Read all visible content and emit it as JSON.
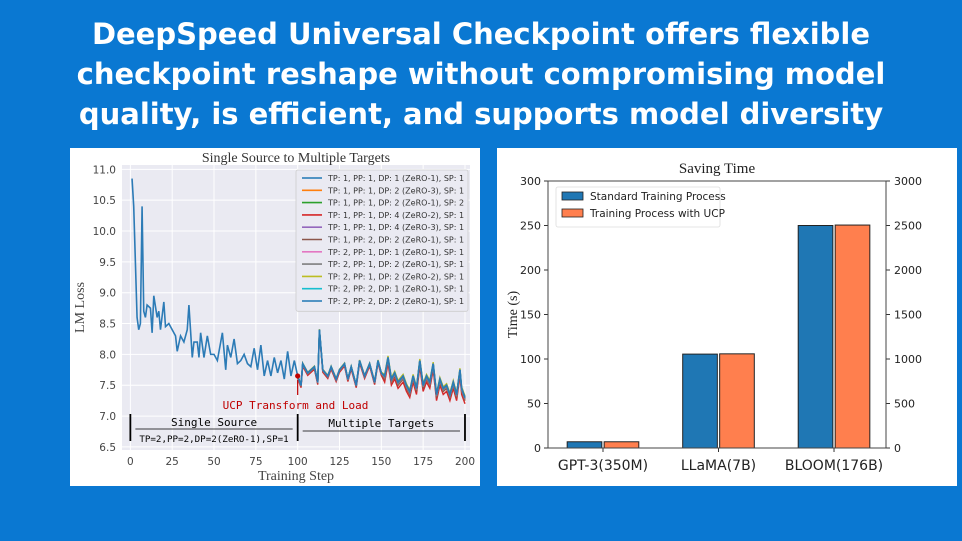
{
  "slide": {
    "title_lines": [
      "DeepSpeed Universal Checkpoint offers flexible",
      "checkpoint reshape without compromising model",
      "quality, is efficient, and supports model diversity"
    ],
    "background_color": "#0a78d2"
  },
  "chart_data": [
    {
      "type": "line",
      "title": "Single Source to Multiple Targets",
      "xlabel": "Training Step",
      "ylabel": "LM Loss",
      "xlim": [
        -5,
        203
      ],
      "ylim": [
        6.45,
        11.07
      ],
      "xticks": [
        0,
        25,
        50,
        75,
        100,
        125,
        150,
        175,
        200
      ],
      "yticks": [
        6.5,
        7.0,
        7.5,
        8.0,
        8.5,
        9.0,
        9.5,
        10.0,
        10.5,
        11.0
      ],
      "ytick_labels": [
        "6.5",
        "7.0",
        "7.5",
        "8.0",
        "8.5",
        "9.0",
        "9.5",
        "10.0",
        "10.5",
        "11.0"
      ],
      "grid": true,
      "legend_position": "top-right",
      "source_series": {
        "x": [
          1,
          2,
          4,
          5,
          6,
          7,
          8,
          9,
          10,
          12,
          13,
          14,
          16,
          17,
          18,
          20,
          21,
          23,
          25,
          27,
          28,
          30,
          32,
          34,
          35,
          37,
          38,
          40,
          41,
          42,
          44,
          46,
          48,
          50,
          52,
          55,
          57,
          58,
          60,
          62,
          64,
          66,
          68,
          70,
          72,
          74,
          76,
          78,
          80,
          82,
          84,
          86,
          88,
          90,
          92,
          94,
          96,
          98,
          100,
          102,
          103,
          106,
          110,
          112,
          113,
          115,
          118,
          120,
          123,
          125,
          128,
          130,
          132,
          135,
          137,
          140,
          143,
          146,
          148,
          150,
          152,
          154,
          156,
          158,
          160,
          163,
          165,
          167,
          169,
          171,
          173,
          175,
          177,
          179,
          181,
          183,
          185,
          187,
          189,
          191,
          193,
          195,
          197,
          198,
          200
        ],
        "y": [
          10.85,
          10.4,
          8.6,
          8.4,
          8.5,
          10.4,
          8.7,
          8.6,
          8.8,
          8.75,
          8.35,
          8.95,
          8.6,
          8.7,
          8.4,
          8.85,
          8.45,
          8.5,
          8.4,
          8.3,
          8.05,
          8.3,
          8.2,
          8.4,
          8.8,
          7.95,
          8.2,
          8.2,
          7.95,
          8.35,
          7.95,
          8.3,
          8.0,
          8.0,
          7.9,
          8.35,
          7.75,
          8.15,
          7.95,
          8.25,
          7.85,
          7.9,
          8.0,
          7.85,
          7.8,
          8.1,
          7.75,
          8.15,
          7.65,
          7.9,
          7.65,
          7.95,
          7.7,
          7.9,
          7.6,
          8.05,
          7.65,
          7.9,
          7.65,
          7.5,
          7.85,
          7.7,
          7.8,
          7.55,
          8.4,
          7.75,
          7.65,
          7.8,
          7.6,
          7.75,
          7.85,
          7.6,
          7.8,
          7.5,
          7.9,
          7.65,
          7.85,
          7.55,
          7.9,
          7.7,
          7.65,
          7.95,
          7.6,
          7.7,
          7.55,
          7.65,
          7.5,
          7.4,
          7.65,
          7.45,
          7.9,
          7.5,
          7.65,
          7.55,
          7.85,
          7.35,
          7.6,
          7.45,
          7.5,
          7.35,
          7.55,
          7.35,
          7.75,
          7.45,
          7.3
        ]
      },
      "series": [
        {
          "name": "TP: 1, PP: 1, DP: 1 (ZeRO-1), SP: 1",
          "color": "#1f77b4",
          "offset_after_100": 0.0
        },
        {
          "name": "TP: 1, PP: 1, DP: 2 (ZeRO-3), SP: 1",
          "color": "#ff7f0e",
          "offset_after_100": -0.02
        },
        {
          "name": "TP: 1, PP: 1, DP: 2 (ZeRO-1), SP: 2",
          "color": "#2ca02c",
          "offset_after_100": -0.01
        },
        {
          "name": "TP: 1, PP: 1, DP: 4 (ZeRO-2), SP: 1",
          "color": "#d62728",
          "offset_after_100": -0.04
        },
        {
          "name": "TP: 1, PP: 1, DP: 4 (ZeRO-3), SP: 1",
          "color": "#9467bd",
          "offset_after_100": -0.01
        },
        {
          "name": "TP: 1, PP: 2, DP: 2 (ZeRO-1), SP: 1",
          "color": "#8c564b",
          "offset_after_100": -0.02
        },
        {
          "name": "TP: 2, PP: 1, DP: 1 (ZeRO-1), SP: 1",
          "color": "#e377c2",
          "offset_after_100": -0.01
        },
        {
          "name": "TP: 2, PP: 1, DP: 2 (ZeRO-1), SP: 1",
          "color": "#7f7f7f",
          "offset_after_100": -0.01
        },
        {
          "name": "TP: 2, PP: 1, DP: 2 (ZeRO-2), SP: 1",
          "color": "#bcbd22",
          "offset_after_100": 0.01
        },
        {
          "name": "TP: 2, PP: 2, DP: 1 (ZeRO-1), SP: 1",
          "color": "#17becf",
          "offset_after_100": 0.0
        },
        {
          "name": "TP: 2, PP: 2, DP: 2 (ZeRO-1), SP: 1",
          "color": "#1f77b4",
          "offset_after_100": 0.0
        }
      ],
      "annotations": {
        "transform_label": "UCP Transform and Load",
        "transform_step": 100,
        "transform_loss": 7.65,
        "single_source_label": "Single Source",
        "single_source_config": "TP=2,PP=2,DP=2(ZeRO-1),SP=1",
        "multiple_targets_label": "Multiple Targets",
        "annotation_color": "#c00000"
      }
    },
    {
      "type": "bar",
      "title": "Saving Time",
      "ylabel": "Time (s)",
      "categories": [
        "GPT-3(350M)",
        "LLaMA(7B)",
        "BLOOM(176B)"
      ],
      "series": [
        {
          "name": "Standard Training Process",
          "color": "#1f77b4",
          "values": [
            7,
            105.5,
            250
          ]
        },
        {
          "name": "Training Process with UCP",
          "color": "#ff7f4e",
          "values": [
            7,
            105.8,
            250.5
          ]
        }
      ],
      "ylim": [
        0,
        300
      ],
      "yticks": [
        0,
        50,
        100,
        150,
        200,
        250,
        300
      ],
      "secondary_ylim": [
        0,
        3000
      ],
      "secondary_yticks": [
        0,
        500,
        1000,
        1500,
        2000,
        2500,
        3000
      ],
      "grid": false,
      "legend_position": "top-left"
    }
  ]
}
